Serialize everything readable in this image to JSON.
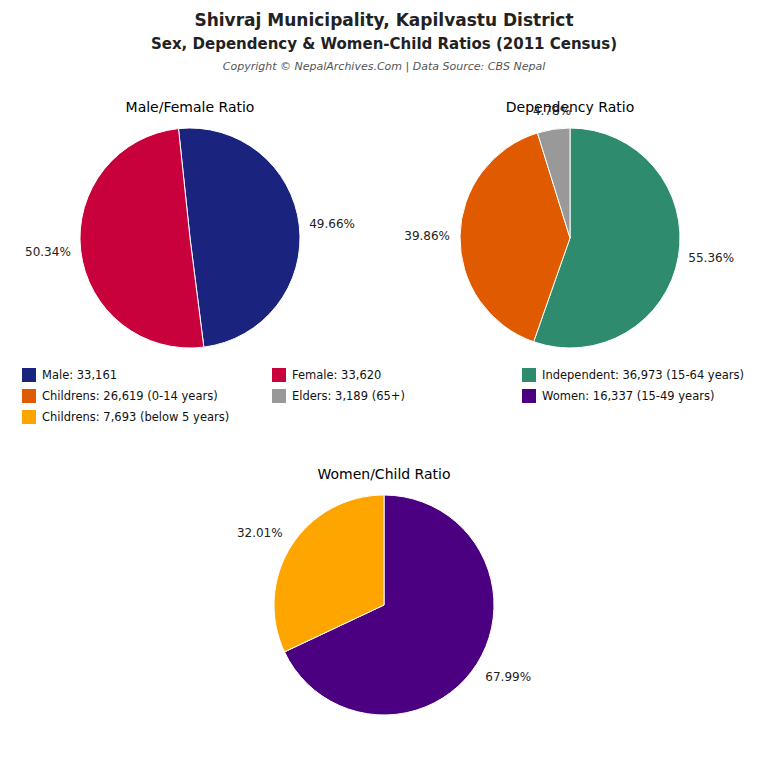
{
  "title": "Shivraj Municipality, Kapilvastu District",
  "subtitle": "Sex, Dependency & Women-Child Ratios (2011 Census)",
  "annotations": [
    "Copyright © NepalArchives.Com | Data Source: CBS Nepal"
  ],
  "chart_data": [
    {
      "type": "pie",
      "title": "Male/Female Ratio",
      "categories": [
        "Male: 33,161",
        "Female: 33,620"
      ],
      "values": [
        49.66,
        50.34
      ],
      "value_labels": [
        "49.66%",
        "50.34%"
      ],
      "colors": [
        "#1a237e",
        "#c8003c"
      ],
      "data_labels": true
    },
    {
      "type": "pie",
      "title": "Dependency Ratio",
      "categories": [
        "Independent: 36,973 (15-64 years)",
        "Childrens: 26,619 (0-14 years)",
        "Elders: 3,189 (65+)"
      ],
      "values": [
        55.36,
        39.86,
        4.78
      ],
      "value_labels": [
        "55.36%",
        "39.86%",
        "4.78%"
      ],
      "colors": [
        "#2e8b6e",
        "#e05a00",
        "#999999"
      ],
      "data_labels": true
    },
    {
      "type": "pie",
      "title": "Women/Child Ratio",
      "categories": [
        "Women: 16,337 (15-49 years)",
        "Childrens: 7,693 (below 5 years)"
      ],
      "values": [
        67.99,
        32.01
      ],
      "value_labels": [
        "67.99%",
        "32.01%"
      ],
      "colors": [
        "#4b0082",
        "#ffa500"
      ],
      "data_labels": true
    }
  ]
}
